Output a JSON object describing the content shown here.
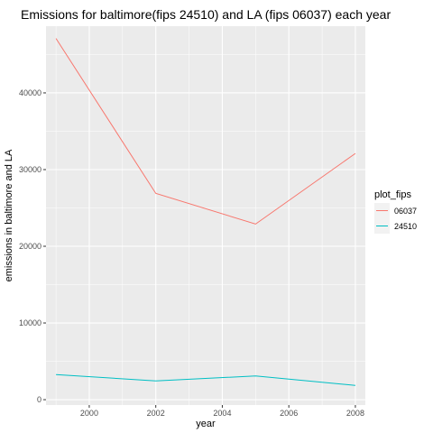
{
  "chart_data": {
    "type": "line",
    "title": "Emissions for baltimore(fips 24510) and LA (fips 06037) each year",
    "xlabel": "year",
    "ylabel": "emissions in baltimore and LA",
    "x": [
      1999,
      2002,
      2005,
      2008
    ],
    "xlim": [
      1998.7,
      2008.3
    ],
    "ylim": [
      -700,
      48700
    ],
    "xticks": [
      2000,
      2002,
      2004,
      2006,
      2008
    ],
    "xtick_labels": [
      "2000",
      "2002",
      "2004",
      "2006",
      "2008"
    ],
    "yticks": [
      0,
      10000,
      20000,
      30000,
      40000
    ],
    "ytick_labels": [
      "0",
      "10000",
      "20000",
      "30000",
      "40000"
    ],
    "grid": true,
    "legend": {
      "title": "plot_fips",
      "position": "right"
    },
    "series": [
      {
        "name": "06037",
        "color": "#f8766d",
        "values": [
          47100,
          26900,
          22900,
          32100
        ]
      },
      {
        "name": "24510",
        "color": "#00bfc4",
        "values": [
          3270,
          2450,
          3090,
          1860
        ]
      }
    ],
    "panel_background": "#ebebeb",
    "grid_color": "#ffffff"
  }
}
